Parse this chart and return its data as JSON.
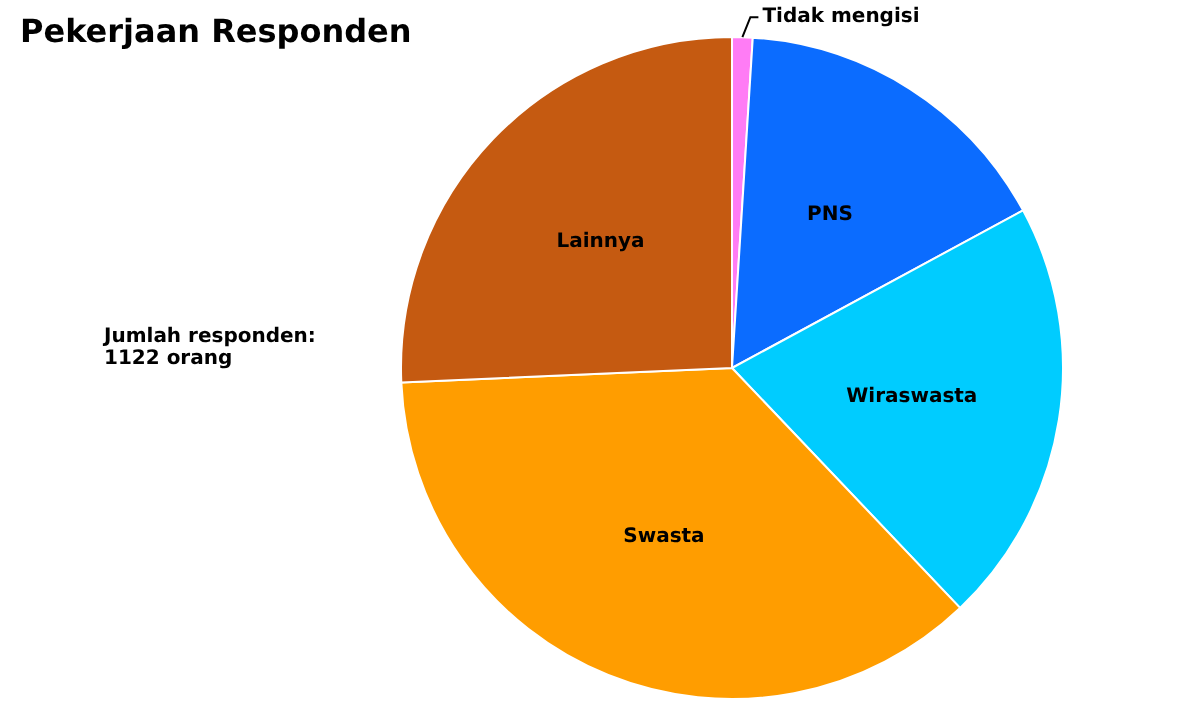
{
  "chart_data": {
    "type": "pie",
    "title": "Pekerjaan Responden",
    "annotations": [
      "Jumlah responden:\n1122 orang"
    ],
    "categories": [
      "Tidak mengisi",
      "PNS",
      "Wiraswasta",
      "Swasta",
      "Lainnya"
    ],
    "values": [
      1.0,
      16.1,
      20.8,
      36.4,
      25.7
    ],
    "colors": [
      "#ff7cf5",
      "#0b6cff",
      "#00ccff",
      "#ff9d00",
      "#c55a11"
    ],
    "legend": false
  }
}
